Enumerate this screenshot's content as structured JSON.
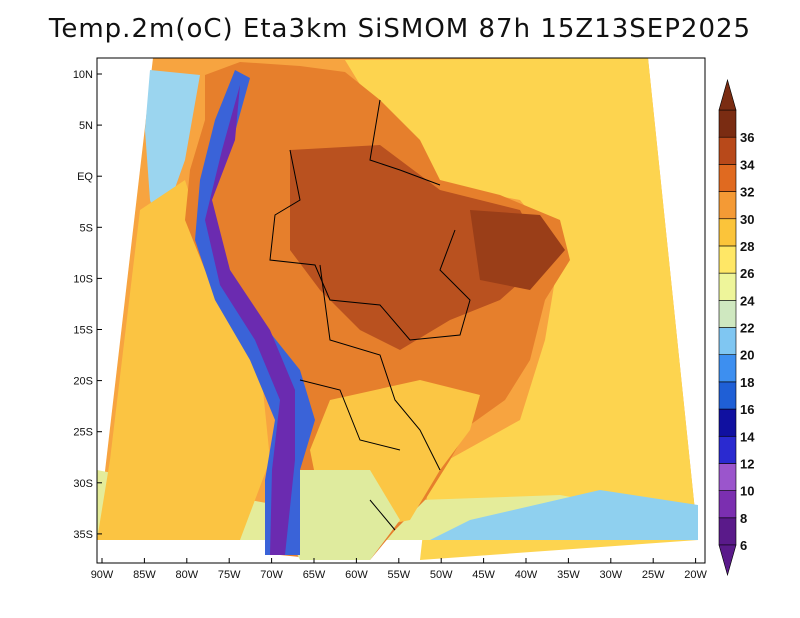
{
  "title": "Temp.2m(oC) Eta3km SiSMOM 87h 15Z13SEP2025",
  "lat_labels": [
    "10N",
    "5N",
    "EQ",
    "5S",
    "10S",
    "15S",
    "20S",
    "25S",
    "30S",
    "35S"
  ],
  "lon_labels": [
    "90W",
    "85W",
    "80W",
    "75W",
    "70W",
    "65W",
    "60W",
    "55W",
    "50W",
    "45W",
    "40W",
    "35W",
    "30W",
    "25W",
    "20W"
  ],
  "colorbar": {
    "labels": [
      "6",
      "8",
      "10",
      "12",
      "14",
      "16",
      "18",
      "20",
      "22",
      "24",
      "26",
      "28",
      "30",
      "32",
      "34",
      "36"
    ],
    "colors": [
      "#5a1a8a",
      "#7b2fb0",
      "#9b55cc",
      "#2a2ad0",
      "#1010a0",
      "#1f5fd6",
      "#3d8ff0",
      "#7fc6f2",
      "#cfe8c0",
      "#eef59a",
      "#ffe766",
      "#fbc43a",
      "#f49a35",
      "#e06a20",
      "#b8491a",
      "#7a2c12"
    ]
  },
  "regions": {
    "ocean_atlantic": "#fdd44f",
    "ocean_warm": "#f5a843",
    "cold_coast": "#8fd0ef",
    "land_hot": "#d2702a",
    "land_very_hot": "#a4461c",
    "land_warm": "#f0983a",
    "south_cool": "#e2eb98",
    "andes": "#6a2bb0",
    "andes_blue": "#2c4fd6"
  }
}
